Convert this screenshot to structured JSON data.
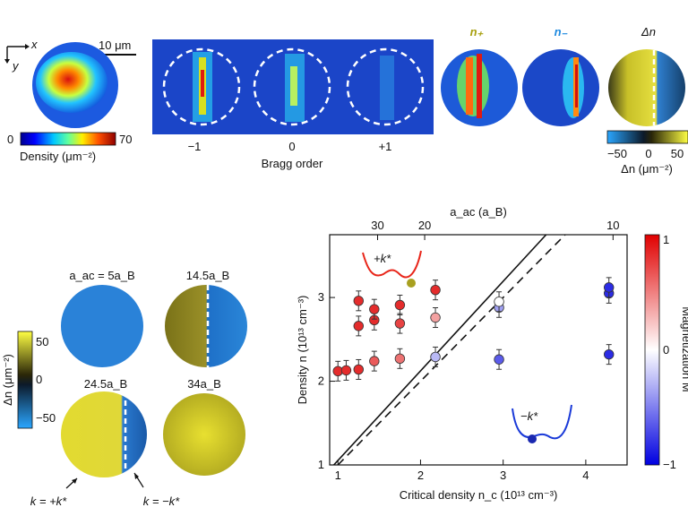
{
  "top": {
    "scale_bar": "10 μm",
    "axis_x": "x",
    "axis_y": "y",
    "density_cbar": {
      "min": "0",
      "max": "70",
      "label": "Density (μm⁻²)"
    },
    "bragg_ticks": [
      "−1",
      "0",
      "+1"
    ],
    "bragg_label": "Bragg order",
    "n_plus": "n₊",
    "n_minus": "n₋",
    "delta_n": "Δn",
    "dn_cbar": {
      "ticks": [
        "−50",
        "0",
        "50"
      ],
      "label": "Δn (μm⁻²)"
    }
  },
  "bottom_left": {
    "cbar_label": "Δn (μm⁻²)",
    "cbar_ticks": [
      "50",
      "0",
      "−50"
    ],
    "panels": [
      "a_ac = 5a_B",
      "14.5a_B",
      "24.5a_B",
      "34a_B"
    ],
    "arrow_left": "k = +k*",
    "arrow_right": "k = −k*"
  },
  "chart_data": {
    "type": "scatter",
    "xlabel": "Critical density n_c (10¹³ cm⁻³)",
    "ylabel": "Density n (10¹³ cm⁻³)",
    "top_axis_label": "a_ac (a_B)",
    "top_ticks": [
      "30",
      "20",
      "10"
    ],
    "xlim": [
      0.9,
      4.5
    ],
    "ylim": [
      1.0,
      3.75
    ],
    "xticks": [
      1,
      2,
      3,
      4
    ],
    "yticks": [
      1,
      2,
      3
    ],
    "colorbar": {
      "label": "Magnetization M",
      "ticks": [
        "1",
        "0",
        "−1"
      ]
    },
    "insets": {
      "plus": "+k*",
      "minus": "−k*"
    },
    "points": [
      {
        "x": 1.0,
        "y": 2.12,
        "m": 0.9
      },
      {
        "x": 1.1,
        "y": 2.13,
        "m": 0.9
      },
      {
        "x": 1.25,
        "y": 2.14,
        "m": 0.9
      },
      {
        "x": 1.25,
        "y": 2.66,
        "m": 0.9
      },
      {
        "x": 1.25,
        "y": 2.96,
        "m": 0.9
      },
      {
        "x": 1.44,
        "y": 2.24,
        "m": 0.7
      },
      {
        "x": 1.44,
        "y": 2.73,
        "m": 0.9
      },
      {
        "x": 1.44,
        "y": 2.86,
        "m": 0.9
      },
      {
        "x": 1.75,
        "y": 2.27,
        "m": 0.6
      },
      {
        "x": 1.75,
        "y": 2.69,
        "m": 0.8
      },
      {
        "x": 1.75,
        "y": 2.91,
        "m": 0.9
      },
      {
        "x": 2.18,
        "y": 2.29,
        "m": -0.3
      },
      {
        "x": 2.18,
        "y": 2.76,
        "m": 0.4
      },
      {
        "x": 2.18,
        "y": 3.09,
        "m": 0.9
      },
      {
        "x": 2.95,
        "y": 2.26,
        "m": -0.7
      },
      {
        "x": 2.95,
        "y": 2.88,
        "m": -0.4
      },
      {
        "x": 2.95,
        "y": 2.95,
        "m": 0.0
      },
      {
        "x": 4.28,
        "y": 2.32,
        "m": -0.9
      },
      {
        "x": 4.28,
        "y": 3.05,
        "m": -0.9
      },
      {
        "x": 4.28,
        "y": 3.12,
        "m": -0.9
      }
    ],
    "lines": [
      {
        "style": "solid",
        "x": [
          0.95,
          3.52
        ],
        "y": [
          1.0,
          3.75
        ]
      },
      {
        "style": "dashed",
        "x": [
          1.0,
          3.75
        ],
        "y": [
          1.0,
          3.75
        ]
      }
    ]
  }
}
